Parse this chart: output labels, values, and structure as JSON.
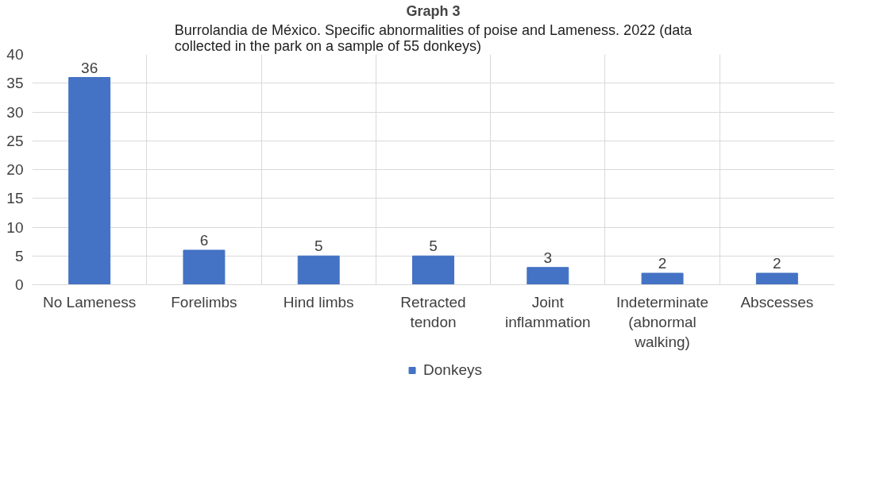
{
  "chart_data": {
    "type": "bar",
    "title": "Graph 3",
    "subtitle": "Burrolandia de México. Specific abnormalities of poise and Lameness. 2022 (data collected in the park on a sample of 55 donkeys)",
    "categories": [
      "No Lameness",
      "Forelimbs",
      "Hind limbs",
      "Retracted tendon",
      "Joint inflammation",
      "Indeterminate (abnormal walking)",
      "Abscesses"
    ],
    "series": [
      {
        "name": "Donkeys",
        "color": "#4472c4",
        "values": [
          36,
          6,
          5,
          5,
          3,
          2,
          2
        ]
      }
    ],
    "ylim": [
      0,
      40
    ],
    "yticks": [
      0,
      5,
      10,
      15,
      20,
      25,
      30,
      35,
      40
    ],
    "grid": true,
    "legend": "bottom",
    "data_labels": true
  }
}
